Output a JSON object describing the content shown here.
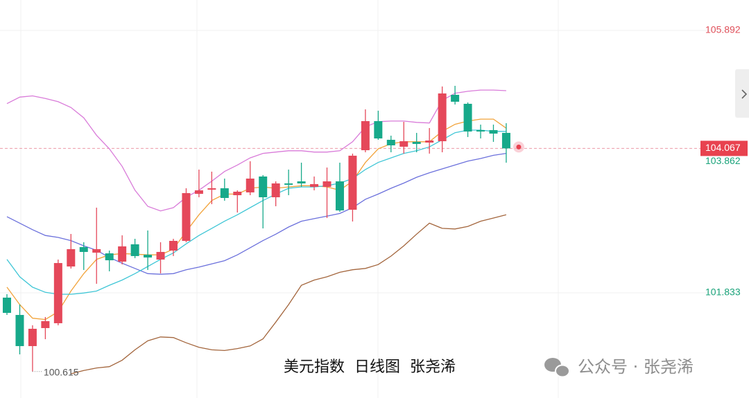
{
  "chart_data": {
    "type": "candlestick",
    "title": "美元指数  日线图  张尧浠",
    "watermark": "公众号 · 张尧浠",
    "open": [
      101.758,
      101.49,
      101.008,
      101.287,
      101.362,
      102.24,
      102.54,
      102.454,
      102.443,
      102.315,
      102.583,
      102.422,
      102.347,
      102.486,
      102.636,
      103.364,
      103.429,
      103.45,
      103.343,
      103.386,
      103.632,
      103.311,
      103.525,
      103.557,
      103.472,
      103.472,
      103.557,
      103.118,
      104.039,
      104.489,
      104.2,
      104.093,
      104.168,
      104.157,
      104.178,
      104.896,
      104.757,
      104.35,
      104.35,
      104.307
    ],
    "high": [
      101.812,
      101.651,
      101.33,
      101.458,
      102.347,
      102.743,
      102.615,
      103.15,
      102.486,
      102.722,
      102.668,
      102.797,
      102.615,
      102.668,
      103.45,
      103.739,
      103.707,
      103.6,
      103.418,
      103.868,
      103.654,
      103.557,
      103.739,
      103.846,
      103.632,
      103.771,
      103.846,
      103.986,
      104.671,
      104.65,
      104.264,
      104.478,
      104.307,
      104.382,
      105.025,
      105.035,
      104.778,
      104.435,
      104.435,
      104.457
    ],
    "low": [
      101.49,
      100.88,
      100.615,
      101.115,
      101.33,
      102.208,
      102.186,
      101.972,
      102.165,
      102.272,
      102.368,
      102.186,
      102.133,
      102.401,
      102.615,
      103.311,
      103.204,
      103.257,
      103.075,
      103.343,
      102.829,
      103.172,
      103.343,
      103.472,
      103.418,
      102.99,
      103.086,
      102.936,
      104.007,
      104.2,
      104.007,
      103.986,
      104.007,
      103.986,
      104.007,
      104.746,
      104.243,
      104.221,
      104.168,
      103.846
    ],
    "close": [
      101.522,
      101.008,
      101.276,
      101.394,
      102.293,
      102.508,
      102.465,
      102.508,
      102.336,
      102.551,
      102.401,
      102.379,
      102.465,
      102.636,
      103.375,
      103.418,
      103.45,
      103.3,
      103.397,
      103.6,
      103.311,
      103.525,
      103.504,
      103.525,
      103.514,
      103.557,
      103.107,
      103.954,
      104.489,
      104.221,
      104.114,
      104.178,
      104.136,
      104.189,
      104.917,
      104.789,
      104.328,
      104.328,
      104.296,
      104.067
    ],
    "up_color": "#e5485a",
    "down_color": "#17a98a",
    "lines": [
      {
        "color": "#d97bd9",
        "values": [
          104.76,
          104.86,
          104.88,
          104.84,
          104.79,
          104.7,
          104.54,
          104.27,
          104.06,
          103.79,
          103.42,
          103.17,
          103.1,
          103.15,
          103.31,
          103.42,
          103.56,
          103.71,
          103.81,
          103.92,
          103.99,
          104.01,
          104.03,
          104.03,
          104.01,
          104.01,
          104.03,
          104.17,
          104.4,
          104.48,
          104.49,
          104.49,
          104.47,
          104.46,
          104.81,
          104.92,
          104.95,
          104.97,
          104.97,
          104.96
        ]
      },
      {
        "color": "#6b70dc",
        "values": [
          103.01,
          102.91,
          102.81,
          102.72,
          102.69,
          102.64,
          102.56,
          102.49,
          102.38,
          102.29,
          102.21,
          102.13,
          102.12,
          102.13,
          102.19,
          102.23,
          102.28,
          102.33,
          102.42,
          102.53,
          102.64,
          102.74,
          102.85,
          102.94,
          102.98,
          103.02,
          103.06,
          103.15,
          103.28,
          103.36,
          103.45,
          103.53,
          103.62,
          103.69,
          103.75,
          103.81,
          103.87,
          103.91,
          103.96,
          103.99
        ]
      },
      {
        "color": "#a3653c",
        "values": [
          null,
          null,
          null,
          null,
          null,
          100.58,
          100.63,
          100.67,
          100.69,
          100.79,
          100.95,
          101.09,
          101.15,
          101.14,
          101.06,
          100.99,
          100.95,
          100.94,
          100.97,
          101.01,
          101.12,
          101.38,
          101.65,
          101.95,
          102.03,
          102.08,
          102.15,
          102.19,
          102.21,
          102.27,
          102.4,
          102.56,
          102.74,
          102.91,
          102.83,
          102.82,
          102.86,
          102.94,
          102.99,
          103.04
        ]
      },
      {
        "color": "#f2a33a",
        "values": [
          101.92,
          101.65,
          101.44,
          101.42,
          101.54,
          101.86,
          102.13,
          102.35,
          102.42,
          102.44,
          102.43,
          102.42,
          102.42,
          102.51,
          102.78,
          103.04,
          103.26,
          103.36,
          103.36,
          103.45,
          103.47,
          103.45,
          103.47,
          103.49,
          103.49,
          103.47,
          103.42,
          103.56,
          103.85,
          104.06,
          104.14,
          104.17,
          104.17,
          104.17,
          104.33,
          104.44,
          104.49,
          104.52,
          104.52,
          104.38
        ]
      },
      {
        "color": "#3fc6d6",
        "values": [
          102.35,
          102.08,
          101.92,
          101.84,
          101.81,
          101.81,
          101.83,
          101.86,
          101.95,
          102.03,
          102.13,
          102.24,
          102.35,
          102.45,
          102.59,
          102.72,
          102.83,
          102.94,
          103.04,
          103.15,
          103.26,
          103.36,
          103.45,
          103.47,
          103.47,
          103.49,
          103.53,
          103.6,
          103.74,
          103.85,
          103.92,
          103.99,
          104.03,
          104.09,
          104.2,
          104.31,
          104.35,
          104.35,
          104.33,
          104.33
        ]
      }
    ],
    "ylim": [
      100.205,
      106.363
    ],
    "yticks": [
      101.833,
      105.892
    ],
    "ytick_colors": [
      "#1aa37a",
      "#e0505a"
    ],
    "grid": true,
    "last_price": 104.067,
    "last_price_color": "#e8424f",
    "ref_price": 103.862,
    "ref_price_color": "#1aa37a",
    "low_label": 100.615
  }
}
